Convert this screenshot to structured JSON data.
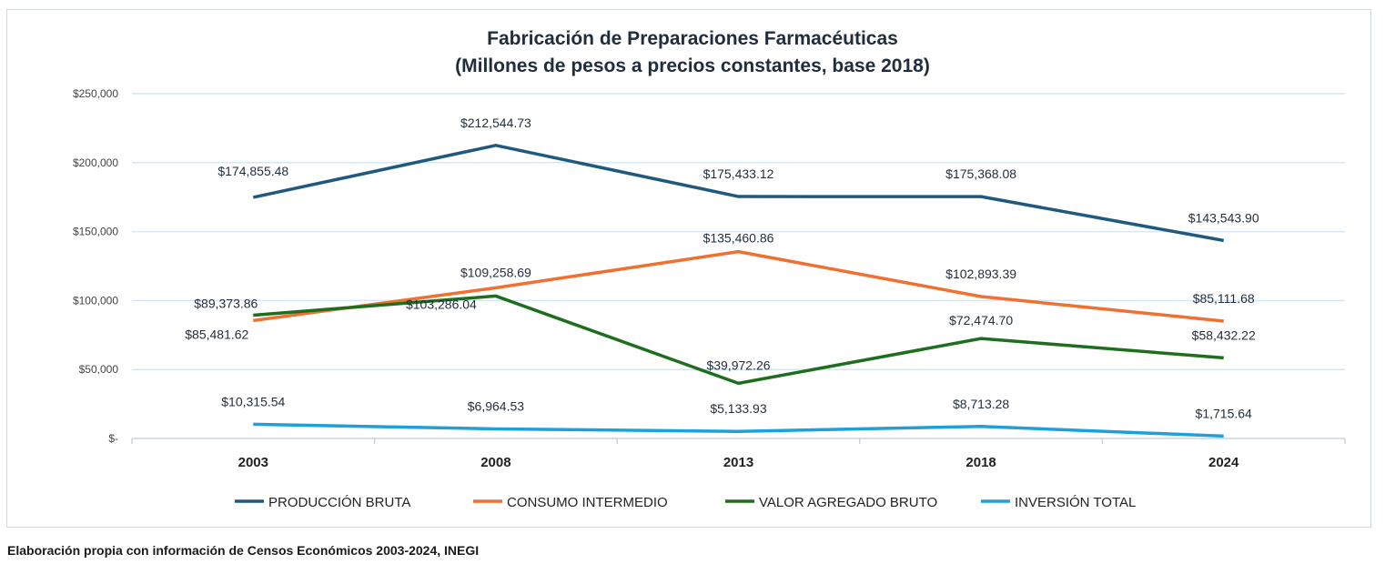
{
  "chart_data": {
    "type": "line",
    "title": "Fabricación de Preparaciones Farmacéuticas",
    "subtitle": "(Millones de pesos a precios constantes, base 2018)",
    "categories": [
      "2003",
      "2008",
      "2013",
      "2018",
      "2024"
    ],
    "ylim": [
      0,
      250000
    ],
    "yticks": [
      0,
      50000,
      100000,
      150000,
      200000,
      250000
    ],
    "ytick_labels": [
      "$-",
      "$50,000",
      "$100,000",
      "$150,000",
      "$200,000",
      "$250,000"
    ],
    "grid": true,
    "legend_position": "bottom",
    "series": [
      {
        "name": "PRODUCCIÓN BRUTA",
        "color": "#1f5a7e",
        "values": [
          174855.48,
          212544.73,
          175433.12,
          175368.08,
          143543.9
        ],
        "labels": [
          "$174,855.48",
          "$212,544.73",
          "$175,433.12",
          "$175,368.08",
          "$143,543.90"
        ]
      },
      {
        "name": "CONSUMO INTERMEDIO",
        "color": "#f07030",
        "values": [
          85481.62,
          109258.69,
          135460.86,
          102893.39,
          85111.68
        ],
        "labels": [
          "$85,481.62",
          "$109,258.69",
          "$135,460.86",
          "$102,893.39",
          "$85,111.68"
        ]
      },
      {
        "name": "VALOR AGREGADO BRUTO",
        "color": "#1e6e1e",
        "values": [
          89373.86,
          103286.04,
          39972.26,
          72474.7,
          58432.22
        ],
        "labels": [
          "$89,373.86",
          "$103,286.04",
          "$39,972.26",
          "$72,474.70",
          "$58,432.22"
        ]
      },
      {
        "name": "INVERSIÓN TOTAL",
        "color": "#1ea0dc",
        "values": [
          10315.54,
          6964.53,
          5133.93,
          8713.28,
          1715.64
        ],
        "labels": [
          "$10,315.54",
          "$6,964.53",
          "$5,133.93",
          "$8,713.28",
          "$1,715.64"
        ]
      }
    ]
  },
  "source": "Elaboración propia con información de Censos Económicos 2003-2024, INEGI"
}
